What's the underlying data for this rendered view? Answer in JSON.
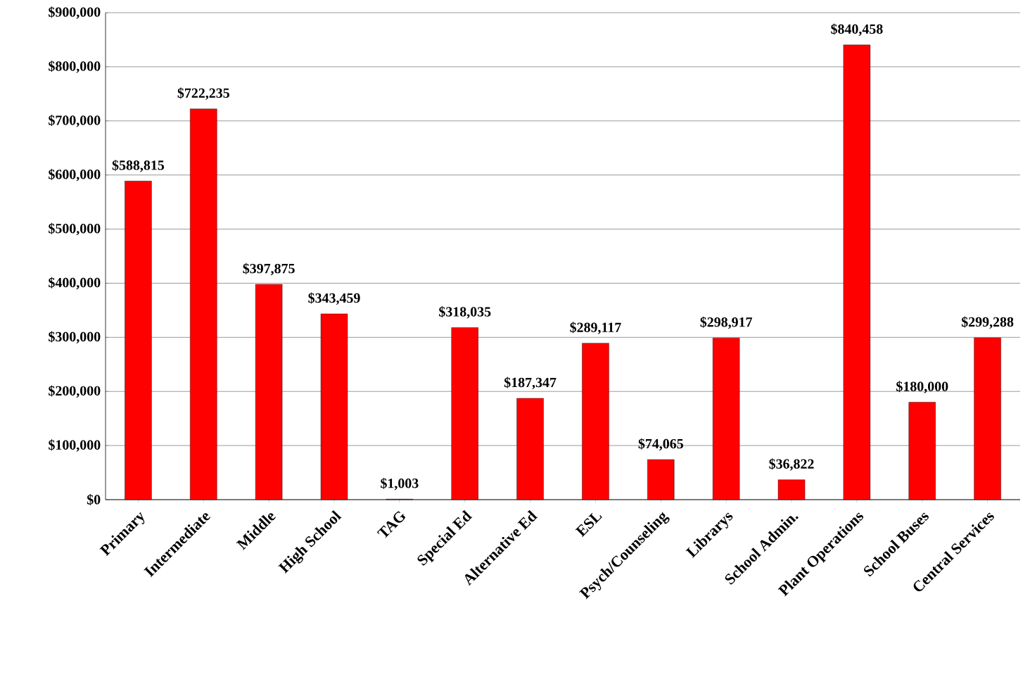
{
  "chart_data": {
    "type": "bar",
    "categories": [
      "Primary",
      "Intermediate",
      "Middle",
      "High School",
      "TAG",
      "Special Ed",
      "Alternative Ed",
      "ESL",
      "Psych/Counseling",
      "Librarys",
      "School Admin.",
      "Plant Operations",
      "School Buses",
      "Central Services"
    ],
    "values": [
      588815,
      722235,
      397875,
      343459,
      1003,
      318035,
      187347,
      289117,
      74065,
      298917,
      36822,
      840458,
      180000,
      299288
    ],
    "value_labels": [
      "$588,815",
      "$722,235",
      "$397,875",
      "$343,459",
      "$1,003",
      "$318,035",
      "$187,347",
      "$289,117",
      "$74,065",
      "$298,917",
      "$36,822",
      "$840,458",
      "$180,000",
      "$299,288"
    ],
    "color": "#ff0000",
    "ylim": [
      0,
      900000
    ],
    "yticks": [
      {
        "value": 0,
        "label": "$0"
      },
      {
        "value": 100000,
        "label": "$100,000"
      },
      {
        "value": 200000,
        "label": "$200,000"
      },
      {
        "value": 300000,
        "label": "$300,000"
      },
      {
        "value": 400000,
        "label": "$400,000"
      },
      {
        "value": 500000,
        "label": "$500,000"
      },
      {
        "value": 600000,
        "label": "$600,000"
      },
      {
        "value": 700000,
        "label": "$700,000"
      },
      {
        "value": 800000,
        "label": "$800,000"
      },
      {
        "value": 900000,
        "label": "$900,000"
      }
    ],
    "grid": "y"
  }
}
